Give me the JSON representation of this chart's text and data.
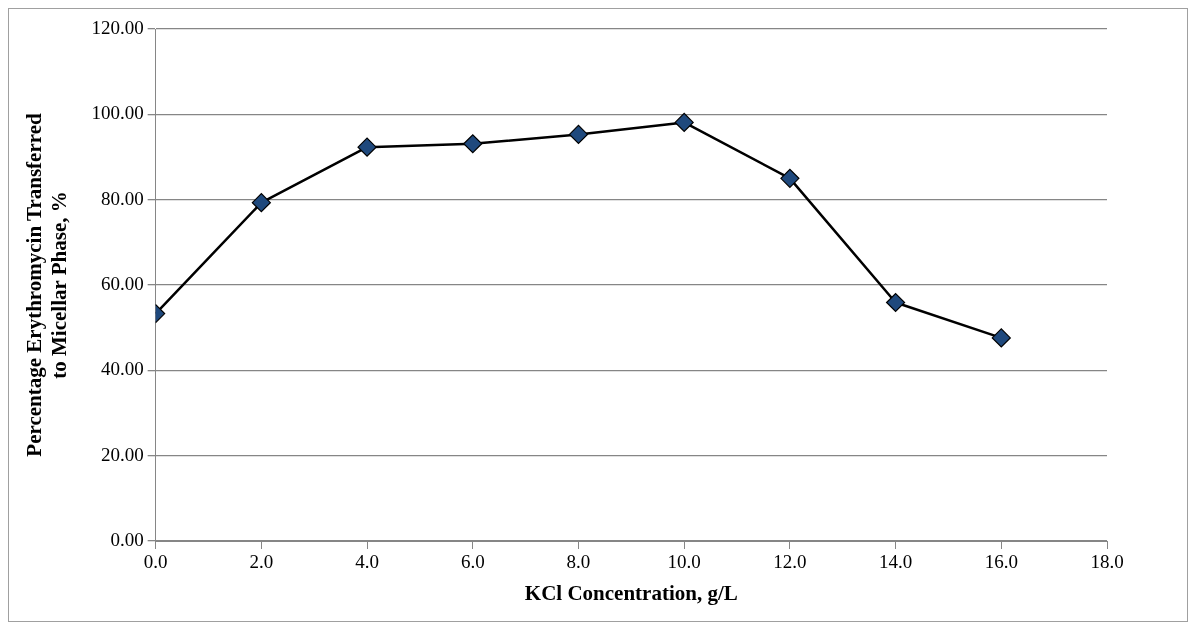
{
  "chart_data": {
    "type": "line",
    "xlabel": "KCl Concentration, g/L",
    "ylabel": "Percentage Erythromycin Transferred\nto Micellar Phase, %",
    "x": [
      0,
      2,
      4,
      6,
      8,
      10,
      12,
      14,
      16
    ],
    "series": [
      {
        "color": "#1f497d",
        "values": [
          53.3,
          79.3,
          92.3,
          93.1,
          95.3,
          98.1,
          85.0,
          55.9,
          47.6
        ]
      }
    ],
    "xlim": [
      0,
      18
    ],
    "xticks": [
      {
        "value": 0,
        "label": "0.0"
      },
      {
        "value": 2,
        "label": "2.0"
      },
      {
        "value": 4,
        "label": "4.0"
      },
      {
        "value": 6,
        "label": "6.0"
      },
      {
        "value": 8,
        "label": "8.0"
      },
      {
        "value": 10,
        "label": "10.0"
      },
      {
        "value": 12,
        "label": "12.0"
      },
      {
        "value": 14,
        "label": "14.0"
      },
      {
        "value": 16,
        "label": "16.0"
      },
      {
        "value": 18,
        "label": "18.0"
      }
    ],
    "ylim": [
      0,
      120
    ],
    "yticks": [
      {
        "value": 0,
        "label": "0.00"
      },
      {
        "value": 20,
        "label": "20.00"
      },
      {
        "value": 40,
        "label": "40.00"
      },
      {
        "value": 60,
        "label": "60.00"
      },
      {
        "value": 80,
        "label": "80.00"
      },
      {
        "value": 100,
        "label": "100.00"
      },
      {
        "value": 120,
        "label": "120.00"
      }
    ],
    "grid": "y",
    "legend": false,
    "marker": "diamond",
    "line_style": "solid"
  }
}
